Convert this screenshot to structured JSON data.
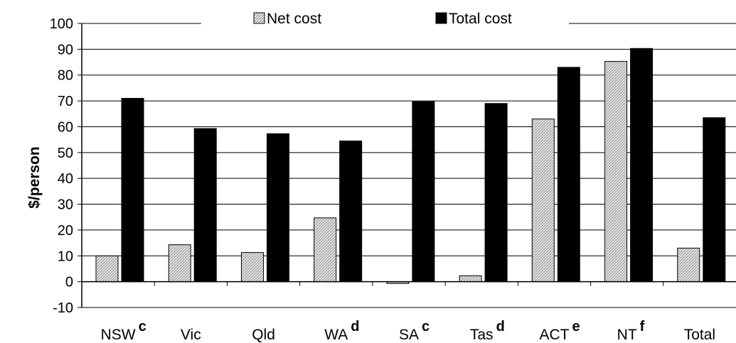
{
  "chart_data": {
    "type": "bar",
    "ylabel": "$/person",
    "ylim": [
      -10,
      100
    ],
    "ytick_step": 10,
    "grid": true,
    "legend_position": "top",
    "categories": [
      "NSW",
      "Vic",
      "Qld",
      "WA",
      "SA",
      "Tas",
      "ACT",
      "NT",
      "Total"
    ],
    "category_notes": [
      "c",
      "",
      "",
      "d",
      "c",
      "d",
      "e",
      "f",
      ""
    ],
    "series": [
      {
        "name": "Net cost",
        "pattern": "hatched-light-grey",
        "values": [
          10,
          14.3,
          11.3,
          24.7,
          -0.7,
          2.3,
          63,
          85.3,
          13
        ]
      },
      {
        "name": "Total cost",
        "color": "#000000",
        "values": [
          71,
          59.3,
          57.3,
          54.5,
          69.7,
          69,
          83,
          90.3,
          63.5
        ]
      }
    ]
  }
}
